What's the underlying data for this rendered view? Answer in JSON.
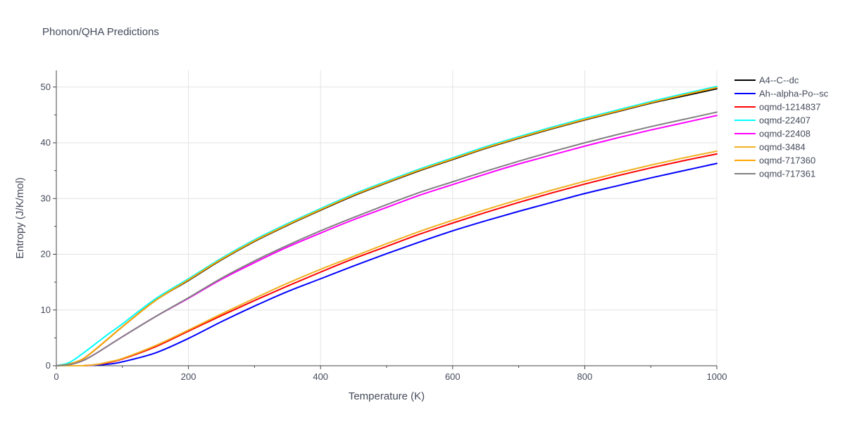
{
  "chart_data": {
    "type": "line",
    "title": "Phonon/QHA Predictions",
    "xlabel": "Temperature (K)",
    "ylabel": "Entropy (J/K/mol)",
    "xlim": [
      0,
      1000
    ],
    "ylim": [
      0,
      53
    ],
    "xticks": [
      0,
      200,
      400,
      600,
      800,
      1000
    ],
    "yticks": [
      0,
      10,
      20,
      30,
      40,
      50
    ],
    "grid": true,
    "legend_position": "right",
    "x": [
      0,
      20,
      40,
      60,
      80,
      100,
      150,
      200,
      250,
      300,
      350,
      400,
      450,
      500,
      550,
      600,
      650,
      700,
      750,
      800,
      850,
      900,
      950,
      1000
    ],
    "series": [
      {
        "name": "A4--C--dc",
        "color": "#000000",
        "values": [
          0,
          0.3,
          1.2,
          3.0,
          5.0,
          7.0,
          11.7,
          15.3,
          19.0,
          22.3,
          25.2,
          27.9,
          30.5,
          32.8,
          35.0,
          37.0,
          39.0,
          40.8,
          42.5,
          44.1,
          45.6,
          47.1,
          48.4,
          49.7
        ]
      },
      {
        "name": "Ah--alpha-Po--sc",
        "color": "#0000ff",
        "values": [
          0,
          0.0,
          0.0,
          0.1,
          0.3,
          0.7,
          2.3,
          4.9,
          7.9,
          10.7,
          13.3,
          15.6,
          17.9,
          20.1,
          22.2,
          24.2,
          26.0,
          27.7,
          29.3,
          30.9,
          32.3,
          33.7,
          35.0,
          36.3
        ]
      },
      {
        "name": "oqmd-1214837",
        "color": "#ff0000",
        "values": [
          0,
          0.0,
          0.0,
          0.2,
          0.6,
          1.2,
          3.4,
          6.2,
          9.0,
          11.7,
          14.3,
          16.8,
          19.2,
          21.4,
          23.6,
          25.6,
          27.5,
          29.3,
          31.0,
          32.6,
          34.1,
          35.5,
          36.8,
          38.0
        ]
      },
      {
        "name": "oqmd-22407",
        "color": "#00ffff",
        "values": [
          0,
          0.6,
          2.2,
          4.0,
          5.8,
          7.5,
          12.0,
          15.6,
          19.3,
          22.6,
          25.5,
          28.2,
          30.8,
          33.1,
          35.3,
          37.3,
          39.3,
          41.1,
          42.8,
          44.4,
          45.9,
          47.4,
          48.8,
          50.1
        ]
      },
      {
        "name": "oqmd-22408",
        "color": "#ff00ff",
        "values": [
          0,
          0.2,
          0.9,
          2.2,
          3.7,
          5.2,
          8.8,
          12.1,
          15.5,
          18.5,
          21.3,
          23.8,
          26.2,
          28.4,
          30.6,
          32.5,
          34.4,
          36.2,
          37.8,
          39.4,
          40.9,
          42.3,
          43.6,
          44.9
        ]
      },
      {
        "name": "oqmd-3484",
        "color": "#f0b020",
        "values": [
          0,
          0.0,
          0.0,
          0.2,
          0.7,
          1.3,
          3.6,
          6.4,
          9.3,
          12.1,
          14.8,
          17.3,
          19.6,
          21.9,
          24.1,
          26.1,
          28.0,
          29.8,
          31.5,
          33.1,
          34.6,
          36.0,
          37.3,
          38.5
        ]
      },
      {
        "name": "oqmd-717360",
        "color": "#ffa500",
        "values": [
          0,
          0.3,
          1.2,
          3.0,
          5.0,
          7.0,
          11.7,
          15.4,
          19.1,
          22.4,
          25.3,
          28.0,
          30.6,
          32.9,
          35.1,
          37.1,
          39.1,
          40.9,
          42.6,
          44.2,
          45.7,
          47.2,
          48.6,
          49.9
        ]
      },
      {
        "name": "oqmd-717361",
        "color": "#808080",
        "values": [
          0,
          0.2,
          0.9,
          2.2,
          3.7,
          5.2,
          8.8,
          12.2,
          15.7,
          18.8,
          21.6,
          24.2,
          26.6,
          28.9,
          31.1,
          33.0,
          34.9,
          36.7,
          38.4,
          40.0,
          41.5,
          42.9,
          44.2,
          45.5
        ]
      }
    ]
  }
}
